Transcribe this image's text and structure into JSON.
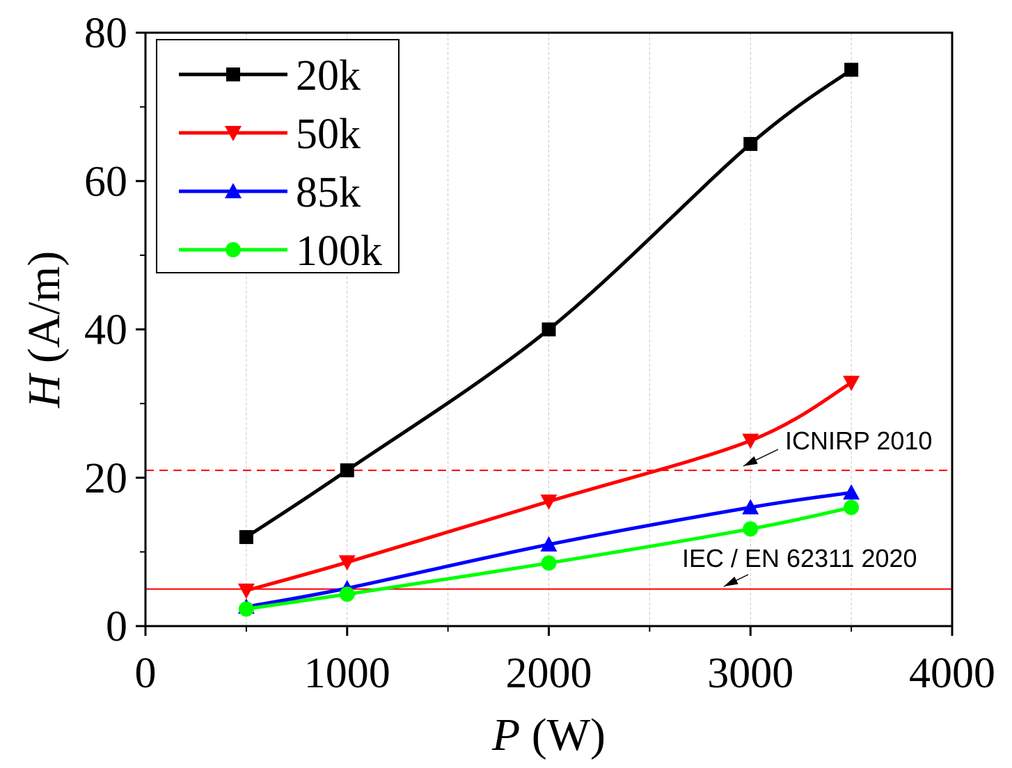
{
  "chart_data": {
    "type": "line",
    "title": "",
    "xlabel_var": "P",
    "xlabel_unit": " (W)",
    "ylabel_var": "H",
    "ylabel_unit": " (A/m)",
    "xlim": [
      0,
      4000
    ],
    "ylim": [
      0,
      80
    ],
    "xticks": [
      0,
      1000,
      2000,
      3000,
      4000
    ],
    "yticks": [
      0,
      20,
      40,
      60,
      80
    ],
    "xtick_labels": [
      "0",
      "1000",
      "2000",
      "3000",
      "4000"
    ],
    "ytick_labels": [
      "0",
      "20",
      "40",
      "60",
      "80"
    ],
    "grid": "vertical dashed",
    "legend_position": "top-left",
    "series": [
      {
        "name": "20k",
        "color": "#000000",
        "marker": "square",
        "x": [
          500,
          1000,
          2000,
          3000,
          3500
        ],
        "values": [
          12,
          21,
          40,
          65,
          75
        ]
      },
      {
        "name": "50k",
        "color": "#ff0000",
        "marker": "triangle-down",
        "x": [
          500,
          1000,
          2000,
          3000,
          3500
        ],
        "values": [
          4.8,
          8.6,
          16.8,
          25,
          32.8
        ]
      },
      {
        "name": "85k",
        "color": "#0000ff",
        "marker": "triangle-up",
        "x": [
          500,
          1000,
          2000,
          3000,
          3500
        ],
        "values": [
          2.6,
          5.1,
          11,
          16,
          18
        ]
      },
      {
        "name": "100k",
        "color": "#00ff00",
        "marker": "circle",
        "x": [
          500,
          1000,
          2000,
          3000,
          3500
        ],
        "values": [
          2.3,
          4.3,
          8.5,
          13.1,
          16
        ]
      }
    ],
    "reference_lines": [
      {
        "label": "ICNIRP 2010",
        "value": 21,
        "color": "#ff0000",
        "style": "dashed"
      },
      {
        "label": "IEC / EN 62311 2020",
        "value": 5,
        "color": "#ff0000",
        "style": "solid"
      }
    ]
  }
}
